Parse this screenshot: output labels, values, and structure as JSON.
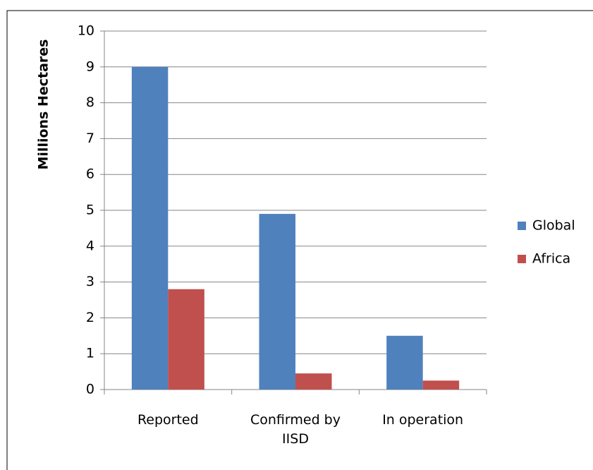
{
  "chart_data": {
    "type": "bar",
    "categories": [
      "Reported",
      "Confirmed by IISD",
      "In operation"
    ],
    "series": [
      {
        "name": "Global",
        "color": "#4f81bd",
        "values": [
          9,
          4.9,
          1.5
        ]
      },
      {
        "name": "Africa",
        "color": "#c0504d",
        "values": [
          2.8,
          0.45,
          0.25
        ]
      }
    ],
    "ylabel": "Millions Hectares",
    "ylim": [
      0,
      10
    ],
    "yticks": [
      0,
      1,
      2,
      3,
      4,
      5,
      6,
      7,
      8,
      9,
      10
    ],
    "grid": true,
    "legend": "right"
  }
}
